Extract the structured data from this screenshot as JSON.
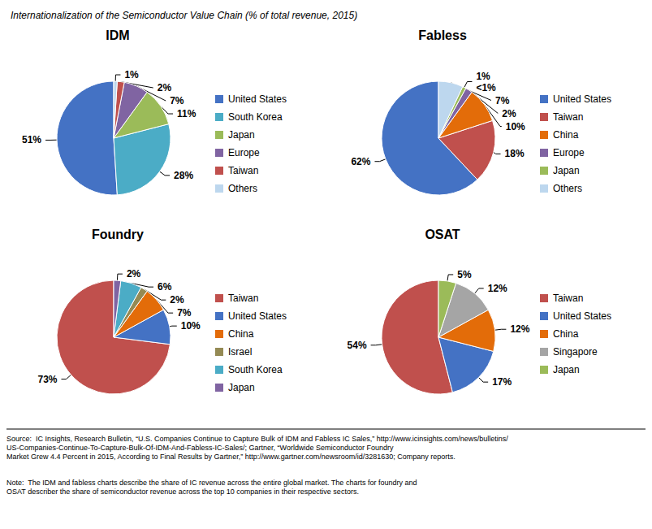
{
  "title": "Internationalization of the Semiconductor Value Chain (% of total revenue, 2015)",
  "annotations": [
    {
      "text": "Source:  IC Insights, Research Bulletin, “U.S. Companies Continue to Capture Bulk of IDM and Fabless IC Sales,” http://www.icinsights.com/news/bulletins/US-Companies-Continue-To-Capture-Bulk-Of-IDM-And-Fabless-IC-Sales/; Gartner, “Worldwide Semiconductor Foundry\nMarket Grew 4.4 Percent in 2015, According to Final Results by Gartner,” http://www.gartner.com/newsroom/id/3281630; Company reports."
    },
    {
      "text": "Note:  The IDM and fabless charts describe the share of IC revenue across the entire global market. The charts for foundry and\nOSAT describer the share of semiconductor revenue across the top 10 companies in their respective sectors."
    }
  ],
  "chart_data": [
    {
      "type": "pie",
      "title": "IDM",
      "categories": [
        "United States",
        "South Korea",
        "Japan",
        "Europe",
        "Taiwan",
        "Others"
      ],
      "values": [
        51,
        28,
        11,
        7,
        2,
        1
      ],
      "value_labels": [
        "51%",
        "28%",
        "11%",
        "7%",
        "2%",
        "1%"
      ],
      "colors": [
        "#4472C4",
        "#4BACC6",
        "#9BBB59",
        "#8064A2",
        "#C0504D",
        "#BDD7EE"
      ],
      "data_labels": true,
      "legend": "right"
    },
    {
      "type": "pie",
      "title": "Fabless",
      "categories": [
        "United States",
        "Taiwan",
        "China",
        "Europe",
        "Japan",
        "Others"
      ],
      "values": [
        62,
        18,
        10,
        2,
        1,
        7
      ],
      "value_labels": [
        "62%",
        "18%",
        "10%",
        "2%",
        "1%",
        "7%"
      ],
      "colors": [
        "#4472C4",
        "#C0504D",
        "#E36C09",
        "#8064A2",
        "#9BBB59",
        "#BDD7EE"
      ],
      "data_labels": true,
      "legend": "right",
      "annotations": [
        {
          "text": "<1%",
          "category": "Japan"
        }
      ]
    },
    {
      "type": "pie",
      "title": "Foundry",
      "categories": [
        "Taiwan",
        "United States",
        "China",
        "Israel",
        "South Korea",
        "Japan"
      ],
      "values": [
        73,
        10,
        7,
        2,
        6,
        2
      ],
      "value_labels": [
        "73%",
        "10%",
        "7%",
        "2%",
        "6%",
        "2%"
      ],
      "colors": [
        "#C0504D",
        "#4472C4",
        "#E36C09",
        "#948A54",
        "#4BACC6",
        "#8064A2"
      ],
      "data_labels": true,
      "legend": "right"
    },
    {
      "type": "pie",
      "title": "OSAT",
      "categories": [
        "Taiwan",
        "United States",
        "China",
        "Singapore",
        "Japan"
      ],
      "values": [
        54,
        17,
        12,
        12,
        5
      ],
      "value_labels": [
        "54%",
        "17%",
        "12%",
        "12%",
        "5%"
      ],
      "colors": [
        "#C0504D",
        "#4472C4",
        "#E36C09",
        "#A5A5A5",
        "#9BBB59"
      ],
      "data_labels": true,
      "legend": "right"
    }
  ]
}
